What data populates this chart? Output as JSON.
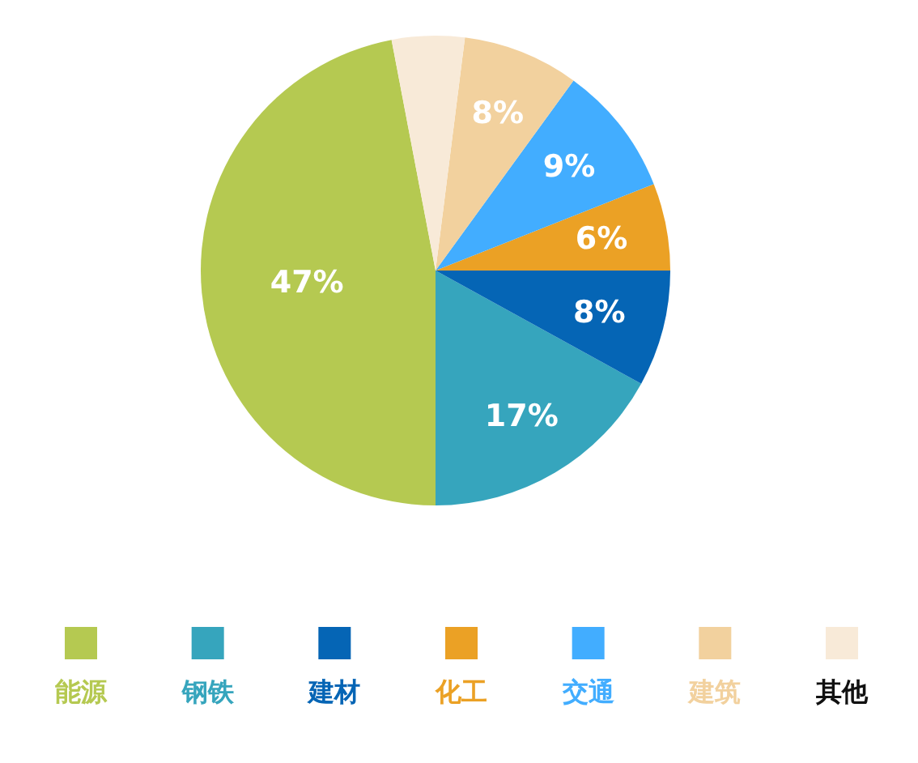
{
  "chart_data": {
    "type": "pie",
    "categories": [
      "能源",
      "钢铁",
      "建材",
      "化工",
      "交通",
      "建筑",
      "其他"
    ],
    "values": [
      47,
      17,
      8,
      6,
      9,
      8,
      5
    ],
    "colors": [
      "#b5c951",
      "#36a5bd",
      "#0565b5",
      "#eba125",
      "#42adff",
      "#f2d19e",
      "#f8ead8"
    ],
    "value_labels": [
      "47%",
      "17%",
      "8%",
      "6%",
      "9%",
      "8%",
      null
    ],
    "legend": "bottom"
  }
}
